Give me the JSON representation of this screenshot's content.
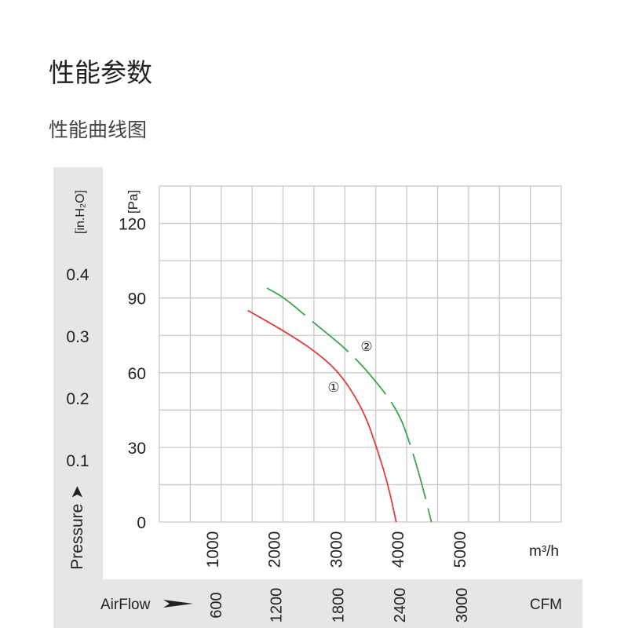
{
  "header": {
    "title": "性能参数",
    "subtitle": "性能曲线图"
  },
  "chart_data": {
    "type": "line",
    "xlabel_primary": "m³/h",
    "xlabel_secondary_prefix": "AirFlow",
    "xlabel_secondary_unit": "CFM",
    "ylabel_primary": "[Pa]",
    "ylabel_secondary": "[in.H₂O]",
    "ylabel_secondary_prefix": "Pressure",
    "xlim": [
      0,
      6500
    ],
    "ylim": [
      0,
      135
    ],
    "grid": true,
    "x_grid_step": 500,
    "y_grid_step": 15,
    "x_ticks": [
      "1000",
      "2000",
      "3000",
      "4000",
      "5000"
    ],
    "x_tick_values": [
      1000,
      2000,
      3000,
      4000,
      5000
    ],
    "x2_ticks": [
      "600",
      "1200",
      "1800",
      "2400",
      "3000"
    ],
    "y_ticks": [
      "0",
      "30",
      "60",
      "90",
      "120"
    ],
    "y_tick_values": [
      0,
      30,
      60,
      90,
      120
    ],
    "y2_ticks": [
      "0.1",
      "0.2",
      "0.3",
      "0.4"
    ],
    "y2_tick_values": [
      0.1,
      0.2,
      0.3,
      0.4
    ],
    "series": [
      {
        "label": "①",
        "color": "#e03c3c",
        "style": "solid",
        "points": [
          [
            1430,
            85
          ],
          [
            2000,
            77
          ],
          [
            2500,
            69
          ],
          [
            2920,
            60
          ],
          [
            3300,
            45
          ],
          [
            3515,
            30
          ],
          [
            3700,
            15
          ],
          [
            3830,
            0
          ]
        ]
      },
      {
        "label": "②",
        "color": "#3aa84a",
        "style": "dashed",
        "points": [
          [
            1740,
            94
          ],
          [
            2030,
            90
          ],
          [
            2500,
            80
          ],
          [
            3000,
            70
          ],
          [
            3390,
            60
          ],
          [
            3860,
            45
          ],
          [
            4075,
            30
          ],
          [
            4250,
            15
          ],
          [
            4400,
            0
          ]
        ]
      }
    ]
  }
}
